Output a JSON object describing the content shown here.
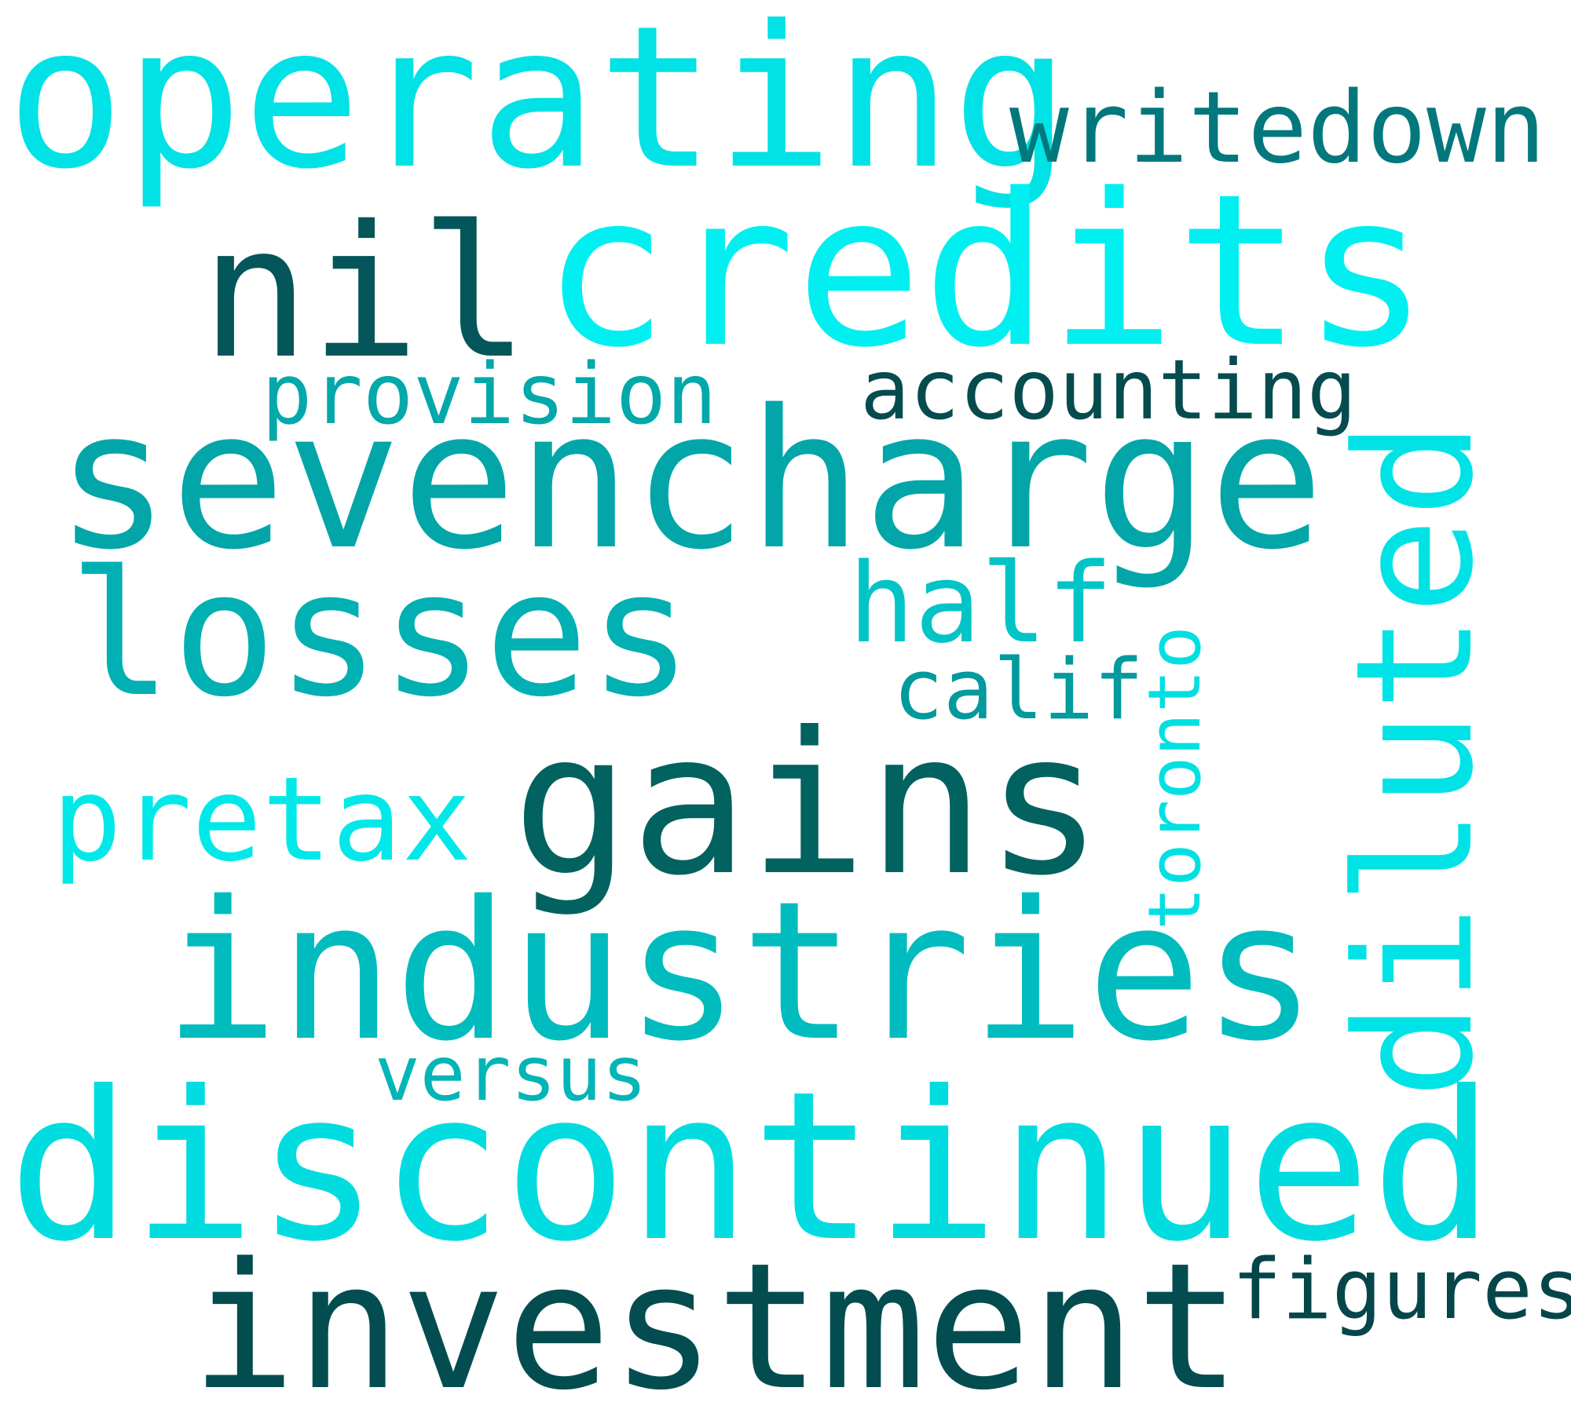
{
  "words": [
    {
      "key": "operating",
      "text": "operating",
      "color": "#00e2e5"
    },
    {
      "key": "writedown",
      "text": "writedown",
      "color": "#02787d"
    },
    {
      "key": "credits",
      "text": "credits",
      "color": "#00f0f1"
    },
    {
      "key": "nil",
      "text": "nil",
      "color": "#04565a"
    },
    {
      "key": "provision",
      "text": "provision",
      "color": "#02a8aa"
    },
    {
      "key": "accounting",
      "text": "accounting",
      "color": "#064c4f"
    },
    {
      "key": "sevencharge",
      "text": "sevencharge",
      "color": "#02a6a8"
    },
    {
      "key": "diluted",
      "text": "diluted",
      "color": "#00e3e6"
    },
    {
      "key": "losses",
      "text": "losses",
      "color": "#00b0b3"
    },
    {
      "key": "half",
      "text": "half",
      "color": "#02c4c7"
    },
    {
      "key": "toronto",
      "text": "toronto",
      "color": "#00e0e3"
    },
    {
      "key": "calif",
      "text": "calif",
      "color": "#029a9d"
    },
    {
      "key": "gains",
      "text": "gains",
      "color": "#01625f"
    },
    {
      "key": "pretax",
      "text": "pretax",
      "color": "#00e8e8"
    },
    {
      "key": "industries",
      "text": "industries",
      "color": "#00bcbe"
    },
    {
      "key": "versus",
      "text": "versus",
      "color": "#02b5b6"
    },
    {
      "key": "discontinued",
      "text": "discontinued",
      "color": "#00dcdf"
    },
    {
      "key": "investment",
      "text": "investment",
      "color": "#034d51"
    },
    {
      "key": "figures",
      "text": "figures",
      "color": "#06464a"
    }
  ]
}
